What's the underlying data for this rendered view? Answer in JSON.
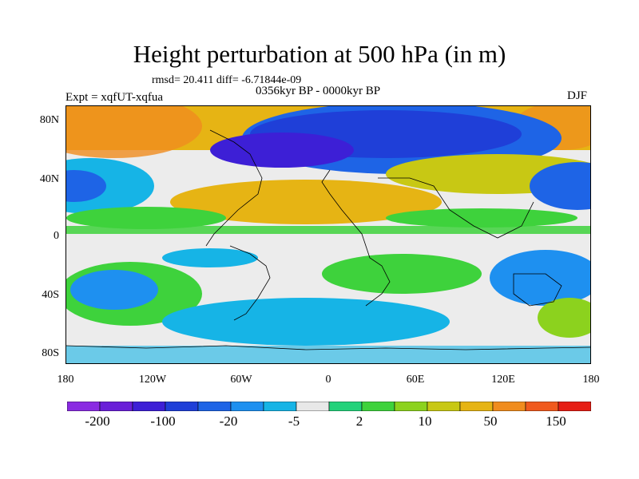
{
  "title": "Height perturbation at 500 hPa (in m)",
  "stats_text": "rmsd= 20.411 diff= -6.71844e-09",
  "period": "0356kyr BP - 0000kyr BP",
  "experiment": "Expt = xqfUT-xqfua",
  "season": "DJF",
  "lat_ticks": [
    "80N",
    "40N",
    "0",
    "40S",
    "80S"
  ],
  "lon_ticks": [
    "180",
    "120W",
    "60W",
    "0",
    "60E",
    "120E",
    "180"
  ],
  "colorbar": {
    "colors": [
      "#8a2be2",
      "#6a1fd8",
      "#3d1fd6",
      "#1f3fd8",
      "#1e64e6",
      "#1e90f0",
      "#16b4e6",
      "#e8e8e8",
      "#22d27a",
      "#3ed23c",
      "#8cd21e",
      "#c8c814",
      "#e6b414",
      "#f08c1e",
      "#f05a1e",
      "#e61e14"
    ],
    "labels": [
      "-200",
      "-100",
      "-20",
      "-5",
      "2",
      "10",
      "50",
      "150"
    ]
  },
  "legend_colors": {
    "ocean_background": "#ececec",
    "coastline": "#000000"
  }
}
